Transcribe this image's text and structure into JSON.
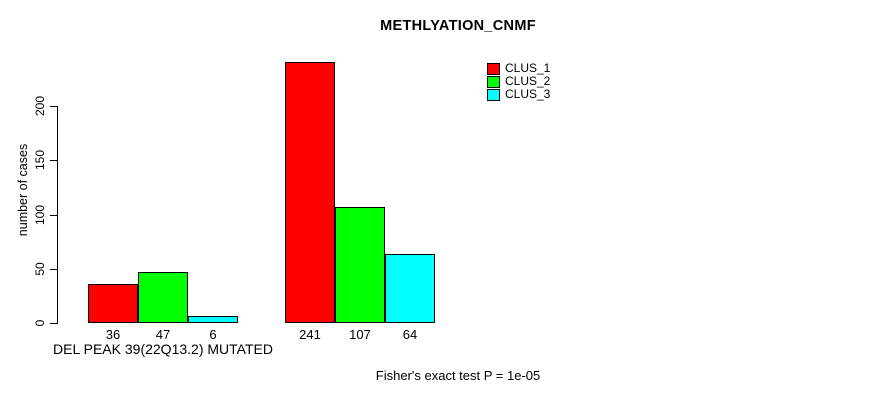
{
  "page": {
    "background": "#ffffff"
  },
  "chart_data": {
    "type": "bar",
    "title": "METHLYATION_CNMF",
    "ylabel": "number of cases",
    "xlabel": "",
    "ylim": [
      0,
      200
    ],
    "yticks": [
      0,
      50,
      100,
      150,
      200
    ],
    "grid": false,
    "legend_position": "top-right",
    "bar_border_color": "#000000",
    "axis_color": "#000000",
    "series": [
      {
        "name": "CLUS_1",
        "color": "#ff0000",
        "values": [
          36,
          241
        ]
      },
      {
        "name": "CLUS_2",
        "color": "#00ff00",
        "values": [
          47,
          107
        ]
      },
      {
        "name": "CLUS_3",
        "color": "#00ffff",
        "values": [
          6,
          64
        ]
      }
    ],
    "group_labels": [
      "DEL PEAK 39(22Q13.2) MUTATED",
      ""
    ],
    "bar_value_labels": [
      [
        36,
        47,
        6
      ],
      [
        241,
        107,
        64
      ]
    ],
    "annotation": "Fisher's exact test P = 1e-05"
  }
}
